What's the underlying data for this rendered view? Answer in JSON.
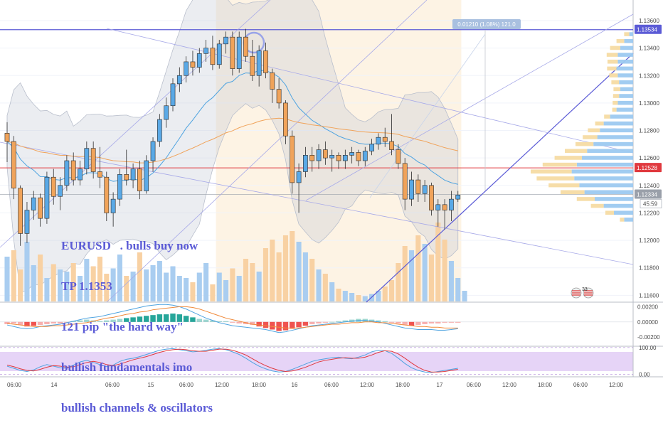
{
  "colors": {
    "bull": "#5aa9e6",
    "bear": "#f0a35a",
    "blue_line": "#5b5bd6",
    "red_line": "#e0393e",
    "bands_fill": "#c7ccd6",
    "vol_bull": "#a9cdf0",
    "vol_bear": "#f8d1a3",
    "macd_pos": "#26a69a",
    "macd_neg": "#ef5350",
    "stoch_bg": "#e6d4f7",
    "profile_up": "#9cc9f0",
    "profile_down": "#f6dba3"
  },
  "annotation": {
    "lines": [
      "EURUSD   . bulls buy now",
      "TP 1.1353",
      "121 pip \"the hard way\"",
      "bullish fundamentals imo",
      "bullish channels & oscillators"
    ]
  },
  "measure_label": "0.01210 (1.08%) 121.0",
  "price_tags": {
    "high": "1.13534",
    "mid": "1.12528",
    "last": "1.12334",
    "countdown": "45:59"
  },
  "event_badge": {
    "count": "33"
  },
  "chart_data": [
    {
      "type": "candlestick",
      "title": "",
      "ylim": [
        1.1155,
        1.1375
      ],
      "y_ticks": [
        "1.13600",
        "1.13400",
        "1.13200",
        "1.13000",
        "1.12800",
        "1.12600",
        "1.12400",
        "1.12200",
        "1.12000",
        "1.11800",
        "1.11600"
      ],
      "y_tick_values": [
        1.136,
        1.134,
        1.132,
        1.13,
        1.128,
        1.126,
        1.124,
        1.122,
        1.12,
        1.118,
        1.116
      ],
      "x_ticks": [
        "06:00",
        "14",
        "06:00",
        "15",
        "06:00",
        "12:00",
        "18:00",
        "16",
        "06:00",
        "12:00",
        "18:00",
        "17",
        "06:00",
        "12:00",
        "18:00",
        "06:00",
        "12:00",
        "18:00",
        "06:00",
        "12:00"
      ],
      "horizontal_lines": [
        1.13534,
        1.12528
      ],
      "candles": [
        [
          1.1278,
          1.1286,
          1.1257,
          1.1272
        ],
        [
          1.1272,
          1.1276,
          1.123,
          1.1238
        ],
        [
          1.1238,
          1.124,
          1.1196,
          1.1205
        ],
        [
          1.1205,
          1.1228,
          1.1198,
          1.1222
        ],
        [
          1.1222,
          1.1236,
          1.1215,
          1.1231
        ],
        [
          1.1231,
          1.1234,
          1.121,
          1.1216
        ],
        [
          1.1216,
          1.125,
          1.1212,
          1.1246
        ],
        [
          1.1246,
          1.1252,
          1.1226,
          1.1232
        ],
        [
          1.1232,
          1.1246,
          1.1222,
          1.124
        ],
        [
          1.124,
          1.1262,
          1.1236,
          1.1258
        ],
        [
          1.1258,
          1.1264,
          1.124,
          1.1244
        ],
        [
          1.1244,
          1.1258,
          1.124,
          1.1252
        ],
        [
          1.1252,
          1.1272,
          1.1248,
          1.1267
        ],
        [
          1.1267,
          1.1272,
          1.1245,
          1.125
        ],
        [
          1.125,
          1.1268,
          1.1238,
          1.1246
        ],
        [
          1.1246,
          1.125,
          1.1214,
          1.122
        ],
        [
          1.122,
          1.1235,
          1.121,
          1.123
        ],
        [
          1.123,
          1.1252,
          1.1225,
          1.1248
        ],
        [
          1.1248,
          1.1266,
          1.124,
          1.1244
        ],
        [
          1.1244,
          1.1256,
          1.1238,
          1.1252
        ],
        [
          1.1252,
          1.1258,
          1.123,
          1.1236
        ],
        [
          1.1236,
          1.1262,
          1.1234,
          1.1258
        ],
        [
          1.1258,
          1.1275,
          1.125,
          1.1272
        ],
        [
          1.1272,
          1.1292,
          1.1268,
          1.1288
        ],
        [
          1.1288,
          1.1304,
          1.1282,
          1.1298
        ],
        [
          1.1298,
          1.1318,
          1.1294,
          1.1314
        ],
        [
          1.1314,
          1.1326,
          1.1308,
          1.132
        ],
        [
          1.132,
          1.1334,
          1.1315,
          1.133
        ],
        [
          1.133,
          1.1338,
          1.132,
          1.1326
        ],
        [
          1.1326,
          1.134,
          1.1322,
          1.1336
        ],
        [
          1.1336,
          1.1346,
          1.133,
          1.134
        ],
        [
          1.134,
          1.1349,
          1.1324,
          1.1328
        ],
        [
          1.1328,
          1.1346,
          1.1325,
          1.1343
        ],
        [
          1.1343,
          1.1352,
          1.1336,
          1.1348
        ],
        [
          1.1348,
          1.1352,
          1.132,
          1.1325
        ],
        [
          1.1325,
          1.1352,
          1.1322,
          1.1348
        ],
        [
          1.1348,
          1.1354,
          1.133,
          1.1334
        ],
        [
          1.1334,
          1.1346,
          1.1316,
          1.132
        ],
        [
          1.132,
          1.1342,
          1.1312,
          1.1338
        ],
        [
          1.1338,
          1.1344,
          1.1318,
          1.1322
        ],
        [
          1.1322,
          1.1325,
          1.13,
          1.131
        ],
        [
          1.131,
          1.1318,
          1.1296,
          1.13
        ],
        [
          1.13,
          1.1302,
          1.127,
          1.1276
        ],
        [
          1.1276,
          1.128,
          1.1234,
          1.1242
        ],
        [
          1.1242,
          1.1256,
          1.122,
          1.125
        ],
        [
          1.125,
          1.1268,
          1.1246,
          1.1262
        ],
        [
          1.1262,
          1.1268,
          1.125,
          1.1258
        ],
        [
          1.1258,
          1.127,
          1.1252,
          1.1266
        ],
        [
          1.1266,
          1.1272,
          1.1255,
          1.126
        ],
        [
          1.126,
          1.1266,
          1.125,
          1.1262
        ],
        [
          1.1262,
          1.1264,
          1.1252,
          1.1258
        ],
        [
          1.1258,
          1.1266,
          1.1252,
          1.1262
        ],
        [
          1.1262,
          1.1268,
          1.1256,
          1.1264
        ],
        [
          1.1264,
          1.1266,
          1.1254,
          1.1258
        ],
        [
          1.1258,
          1.1268,
          1.1254,
          1.1265
        ],
        [
          1.1265,
          1.1274,
          1.1262,
          1.127
        ],
        [
          1.127,
          1.1278,
          1.1266,
          1.1275
        ],
        [
          1.1275,
          1.1282,
          1.1268,
          1.1272
        ],
        [
          1.1272,
          1.1292,
          1.1262,
          1.1266
        ],
        [
          1.1266,
          1.127,
          1.1252,
          1.1256
        ],
        [
          1.1256,
          1.126,
          1.1222,
          1.123
        ],
        [
          1.123,
          1.125,
          1.1225,
          1.1244
        ],
        [
          1.1244,
          1.1248,
          1.1228,
          1.1234
        ],
        [
          1.1234,
          1.1244,
          1.1228,
          1.124
        ],
        [
          1.124,
          1.1242,
          1.1218,
          1.1222
        ],
        [
          1.1222,
          1.123,
          1.121,
          1.1226
        ],
        [
          1.1226,
          1.123,
          1.1208,
          1.1222
        ],
        [
          1.1222,
          1.1236,
          1.1214,
          1.123
        ],
        [
          1.123,
          1.1236,
          1.1228,
          1.1233
        ]
      ]
    },
    {
      "type": "bar",
      "title": "",
      "values": [
        42,
        48,
        30,
        56,
        34,
        44,
        22,
        35,
        30,
        28,
        36,
        24,
        40,
        33,
        42,
        26,
        31,
        44,
        24,
        28,
        46,
        30,
        34,
        38,
        27,
        33,
        24,
        22,
        18,
        27,
        36,
        16,
        27,
        20,
        31,
        24,
        40,
        36,
        28,
        50,
        58,
        46,
        62,
        66,
        56,
        46,
        40,
        30,
        26,
        18,
        12,
        10,
        8,
        6,
        5,
        7,
        10,
        14,
        20,
        36,
        52,
        48,
        62,
        54,
        44,
        74,
        58,
        38,
        22,
        10
      ],
      "up": [
        1,
        0,
        0,
        1,
        1,
        0,
        1,
        0,
        1,
        1,
        0,
        1,
        1,
        0,
        0,
        0,
        1,
        1,
        0,
        1,
        0,
        1,
        1,
        1,
        1,
        1,
        1,
        1,
        0,
        1,
        1,
        0,
        1,
        1,
        0,
        1,
        0,
        0,
        1,
        0,
        0,
        0,
        0,
        0,
        1,
        1,
        0,
        1,
        0,
        1,
        0,
        1,
        1,
        0,
        1,
        1,
        1,
        0,
        0,
        0,
        0,
        1,
        0,
        1,
        0,
        0,
        0,
        1,
        1,
        1
      ]
    },
    {
      "type": "bar",
      "title": "",
      "y_ticks": [
        "0.00200",
        "0.00000",
        "-0.00200"
      ],
      "y_tick_values": [
        0.002,
        0.0,
        -0.002
      ],
      "ylim": [
        -0.0032,
        0.0026
      ],
      "values": [
        -0.0003,
        -0.0002,
        -0.0004,
        -0.0006,
        -0.0005,
        -0.0004,
        -0.0003,
        -0.0002,
        -0.0002,
        -0.0001,
        0.0001,
        0.0002,
        0.0003,
        0.0002,
        0.0001,
        0.0002,
        0.0003,
        0.0004,
        0.0005,
        0.0006,
        0.0007,
        0.0008,
        0.0009,
        0.001,
        0.001,
        0.0011,
        0.001,
        0.0008,
        0.0006,
        0.0004,
        0.0003,
        0.0002,
        0.0001,
        0.0001,
        -0.0001,
        -0.0002,
        -0.0003,
        -0.0004,
        -0.0006,
        -0.0008,
        -0.001,
        -0.0012,
        -0.0011,
        -0.0009,
        -0.0007,
        -0.0005,
        -0.0003,
        -0.0002,
        -0.0001,
        0.0,
        0.0001,
        0.0002,
        0.0003,
        0.0004,
        0.0004,
        0.0003,
        0.0002,
        0.0001,
        -0.0001,
        -0.0002,
        -0.0004,
        -0.0005,
        -0.0004,
        -0.0003,
        -0.0002,
        -0.0002,
        -0.0001,
        -0.0001,
        -0.0001
      ],
      "macd": [
        -0.0004,
        -0.0006,
        -0.0008,
        -0.0009,
        -0.0008,
        -0.0006,
        -0.0005,
        -0.0004,
        -0.0003,
        -0.0001,
        0.0001,
        0.0003,
        0.0005,
        0.0006,
        0.0007,
        0.0009,
        0.0011,
        0.0013,
        0.0015,
        0.0017,
        0.0019,
        0.0021,
        0.0022,
        0.0023,
        0.0023,
        0.0022,
        0.002,
        0.0017,
        0.0013,
        0.0009,
        0.0005,
        0.0002,
        -0.0001,
        -0.0003,
        -0.0005,
        -0.0006,
        -0.0007,
        -0.0008,
        -0.0009,
        -0.001,
        -0.0012,
        -0.0014,
        -0.0013,
        -0.0011,
        -0.0009,
        -0.0007,
        -0.0005,
        -0.0004,
        -0.0003,
        -0.0002,
        -0.0001,
        0.0,
        0.0001,
        0.0002,
        0.0002,
        0.0001,
        0.0,
        -0.0002,
        -0.0004,
        -0.0006,
        -0.0008,
        -0.0009,
        -0.001,
        -0.001,
        -0.001,
        -0.0011,
        -0.0011,
        -0.001,
        -0.0009
      ],
      "signal": [
        -0.0002,
        -0.0003,
        -0.0004,
        -0.0005,
        -0.0006,
        -0.0006,
        -0.0006,
        -0.0005,
        -0.0005,
        -0.0004,
        -0.0003,
        -0.0002,
        -0.0001,
        0.0001,
        0.0003,
        0.0005,
        0.0006,
        0.0008,
        0.001,
        0.0011,
        0.0013,
        0.0014,
        0.0016,
        0.0017,
        0.0018,
        0.0019,
        0.002,
        0.002,
        0.0019,
        0.0017,
        0.0014,
        0.0011,
        0.0008,
        0.0005,
        0.0003,
        0.0001,
        -0.0001,
        -0.0003,
        -0.0004,
        -0.0005,
        -0.0006,
        -0.0007,
        -0.0008,
        -0.0008,
        -0.0008,
        -0.0007,
        -0.0006,
        -0.0005,
        -0.0004,
        -0.0003,
        -0.0003,
        -0.0002,
        -0.0001,
        -0.0001,
        0.0,
        0.0,
        -0.0001,
        -0.0001,
        -0.0002,
        -0.0003,
        -0.0004,
        -0.0005,
        -0.0006,
        -0.0006,
        -0.0007,
        -0.0007,
        -0.0008,
        -0.0008,
        -0.0008
      ]
    },
    {
      "type": "line",
      "title": "",
      "y_ticks": [
        "100.00",
        "0.00"
      ],
      "y_tick_values": [
        100,
        0
      ],
      "ylim": [
        -10,
        105
      ],
      "k": [
        30,
        22,
        14,
        10,
        16,
        28,
        36,
        30,
        24,
        22,
        34,
        46,
        52,
        44,
        36,
        28,
        34,
        48,
        56,
        60,
        66,
        74,
        82,
        90,
        94,
        96,
        92,
        88,
        84,
        86,
        90,
        94,
        96,
        92,
        84,
        74,
        60,
        44,
        30,
        20,
        12,
        8,
        10,
        18,
        28,
        38,
        48,
        54,
        58,
        62,
        64,
        60,
        58,
        64,
        72,
        84,
        90,
        88,
        78,
        60,
        40,
        24,
        14,
        8,
        6,
        10,
        14,
        18,
        22
      ],
      "d": [
        34,
        28,
        20,
        14,
        12,
        18,
        26,
        32,
        30,
        26,
        28,
        36,
        44,
        48,
        44,
        36,
        32,
        38,
        46,
        54,
        60,
        66,
        74,
        82,
        88,
        92,
        94,
        92,
        88,
        86,
        86,
        90,
        94,
        94,
        90,
        82,
        72,
        58,
        44,
        32,
        22,
        14,
        10,
        12,
        18,
        26,
        36,
        46,
        52,
        56,
        60,
        62,
        60,
        60,
        64,
        72,
        82,
        88,
        86,
        76,
        60,
        42,
        26,
        14,
        8,
        8,
        10,
        14,
        18
      ]
    }
  ]
}
